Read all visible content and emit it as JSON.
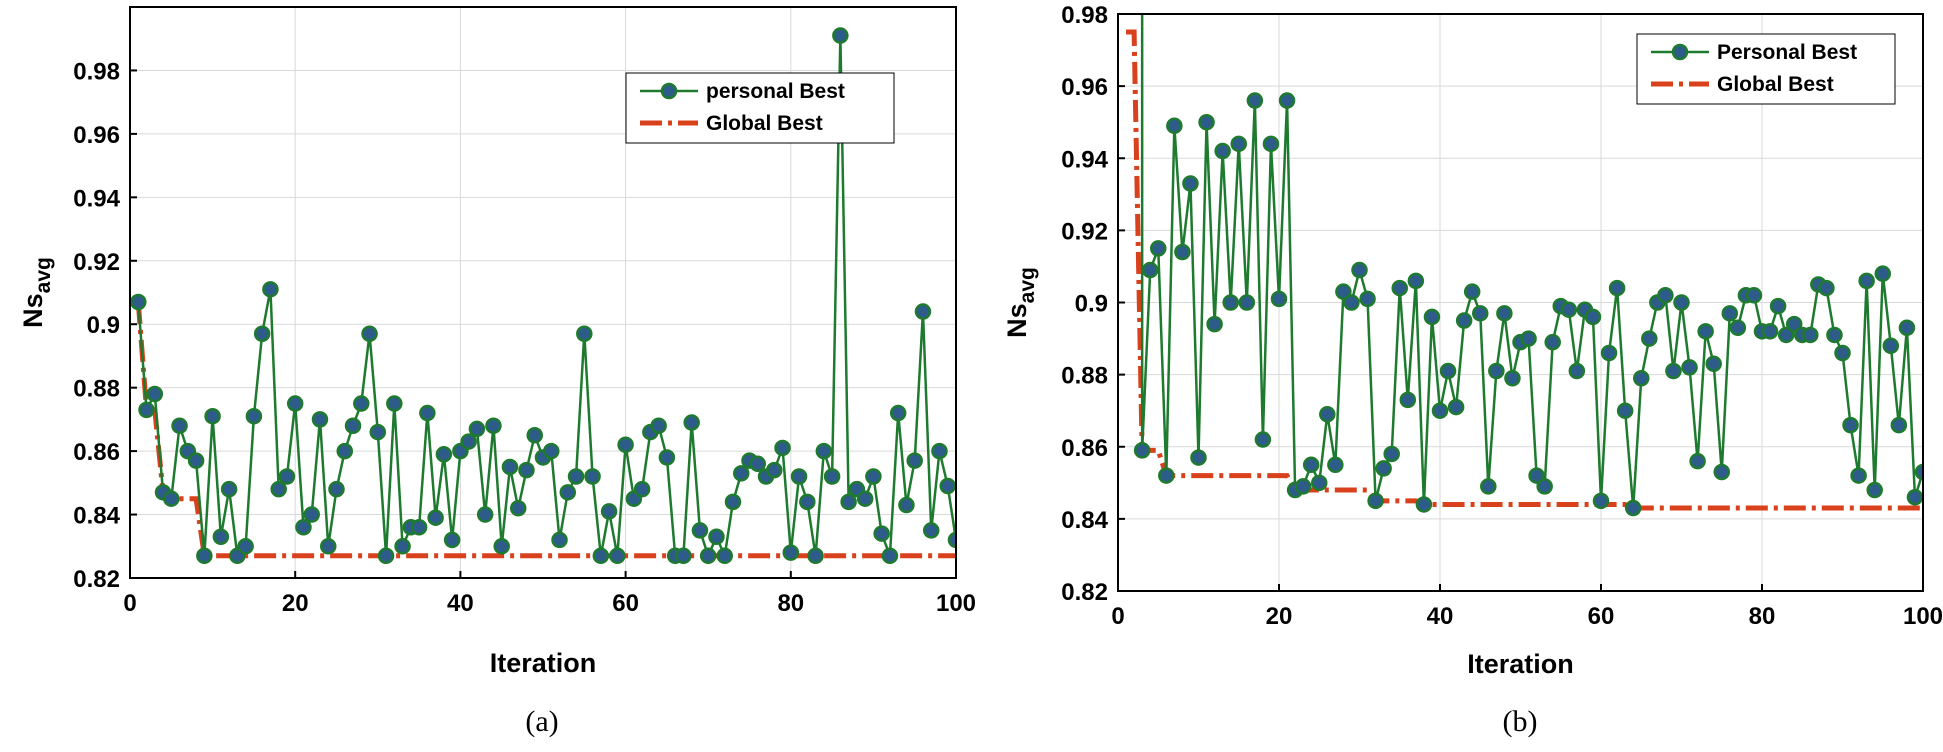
{
  "chart_data": [
    {
      "type": "line",
      "panel": "a",
      "caption": "(a)",
      "xlabel": "Iteration",
      "ylabel_base": "Ns",
      "ylabel_sub": "avg",
      "xlim": [
        0,
        100
      ],
      "ylim": [
        0.82,
        1.0
      ],
      "xticks": [
        0,
        20,
        40,
        60,
        80,
        100
      ],
      "xtick_labels": [
        "0",
        "20",
        "40",
        "60",
        "80",
        "100"
      ],
      "yticks": [
        0.82,
        0.84,
        0.86,
        0.88,
        0.9,
        0.92,
        0.94,
        0.96,
        0.98
      ],
      "ytick_labels": [
        "0.82",
        "0.84",
        "0.86",
        "0.88",
        "0.9",
        "0.92",
        "0.94",
        "0.96",
        "0.98"
      ],
      "grid": true,
      "legend_position": "top-right",
      "colors": {
        "personal": "#1e7a2e",
        "marker_fill": "#2e5c8a",
        "global": "#d9401c"
      },
      "series": [
        {
          "name": "personal Best",
          "style": "line-marker",
          "x": [
            1,
            2,
            3,
            4,
            5,
            6,
            7,
            8,
            9,
            10,
            11,
            12,
            13,
            14,
            15,
            16,
            17,
            18,
            19,
            20,
            21,
            22,
            23,
            24,
            25,
            26,
            27,
            28,
            29,
            30,
            31,
            32,
            33,
            34,
            35,
            36,
            37,
            38,
            39,
            40,
            41,
            42,
            43,
            44,
            45,
            46,
            47,
            48,
            49,
            50,
            51,
            52,
            53,
            54,
            55,
            56,
            57,
            58,
            59,
            60,
            61,
            62,
            63,
            64,
            65,
            66,
            67,
            68,
            69,
            70,
            71,
            72,
            73,
            74,
            75,
            76,
            77,
            78,
            79,
            80,
            81,
            82,
            83,
            84,
            85,
            86,
            87,
            88,
            89,
            90,
            91,
            92,
            93,
            94,
            95,
            96,
            97,
            98,
            99,
            100
          ],
          "values": [
            0.907,
            0.873,
            0.878,
            0.847,
            0.845,
            0.868,
            0.86,
            0.857,
            0.827,
            0.871,
            0.833,
            0.848,
            0.827,
            0.83,
            0.871,
            0.897,
            0.911,
            0.848,
            0.852,
            0.875,
            0.836,
            0.84,
            0.87,
            0.83,
            0.848,
            0.86,
            0.868,
            0.875,
            0.897,
            0.866,
            0.827,
            0.875,
            0.83,
            0.836,
            0.836,
            0.872,
            0.839,
            0.859,
            0.832,
            0.86,
            0.863,
            0.867,
            0.84,
            0.868,
            0.83,
            0.855,
            0.842,
            0.854,
            0.865,
            0.858,
            0.86,
            0.832,
            0.847,
            0.852,
            0.897,
            0.852,
            0.827,
            0.841,
            0.827,
            0.862,
            0.845,
            0.848,
            0.866,
            0.868,
            0.858,
            0.827,
            0.827,
            0.869,
            0.835,
            0.827,
            0.833,
            0.827,
            0.844,
            0.853,
            0.857,
            0.856,
            0.852,
            0.854,
            0.861,
            0.828,
            0.852,
            0.844,
            0.827,
            0.86,
            0.852,
            0.991,
            0.844,
            0.848,
            0.845,
            0.852,
            0.834,
            0.827,
            0.872,
            0.843,
            0.857,
            0.904,
            0.835,
            0.86,
            0.849,
            0.832
          ]
        },
        {
          "name": "Global Best",
          "style": "dash-dot",
          "x": [
            1,
            2,
            3,
            4,
            5,
            6,
            7,
            8,
            9,
            10,
            11,
            12,
            13,
            14,
            15,
            16,
            17,
            18,
            19,
            20,
            21,
            22,
            23,
            24,
            25,
            26,
            27,
            28,
            29,
            30,
            31,
            32,
            33,
            34,
            35,
            36,
            37,
            38,
            39,
            40,
            41,
            42,
            43,
            44,
            45,
            46,
            47,
            48,
            49,
            50,
            51,
            52,
            53,
            54,
            55,
            56,
            57,
            58,
            59,
            60,
            61,
            62,
            63,
            64,
            65,
            66,
            67,
            68,
            69,
            70,
            71,
            72,
            73,
            74,
            75,
            76,
            77,
            78,
            79,
            80,
            81,
            82,
            83,
            84,
            85,
            86,
            87,
            88,
            89,
            90,
            91,
            92,
            93,
            94,
            95,
            96,
            97,
            98,
            99,
            100
          ],
          "values": [
            0.907,
            0.873,
            0.873,
            0.847,
            0.845,
            0.845,
            0.845,
            0.845,
            0.827,
            0.827,
            0.827,
            0.827,
            0.827,
            0.827,
            0.827,
            0.827,
            0.827,
            0.827,
            0.827,
            0.827,
            0.827,
            0.827,
            0.827,
            0.827,
            0.827,
            0.827,
            0.827,
            0.827,
            0.827,
            0.827,
            0.827,
            0.827,
            0.827,
            0.827,
            0.827,
            0.827,
            0.827,
            0.827,
            0.827,
            0.827,
            0.827,
            0.827,
            0.827,
            0.827,
            0.827,
            0.827,
            0.827,
            0.827,
            0.827,
            0.827,
            0.827,
            0.827,
            0.827,
            0.827,
            0.827,
            0.827,
            0.827,
            0.827,
            0.827,
            0.827,
            0.827,
            0.827,
            0.827,
            0.827,
            0.827,
            0.827,
            0.827,
            0.827,
            0.827,
            0.827,
            0.827,
            0.827,
            0.827,
            0.827,
            0.827,
            0.827,
            0.827,
            0.827,
            0.827,
            0.827,
            0.827,
            0.827,
            0.827,
            0.827,
            0.827,
            0.827,
            0.827,
            0.827,
            0.827,
            0.827,
            0.827,
            0.827,
            0.827,
            0.827,
            0.827,
            0.827,
            0.827,
            0.827,
            0.827,
            0.827
          ]
        }
      ]
    },
    {
      "type": "line",
      "panel": "b",
      "caption": "(b)",
      "xlabel": "Iteration",
      "ylabel_base": "Ns",
      "ylabel_sub": "avg",
      "xlim": [
        0,
        100
      ],
      "ylim": [
        0.82,
        0.98
      ],
      "xticks": [
        0,
        20,
        40,
        60,
        80,
        100
      ],
      "xtick_labels": [
        "0",
        "20",
        "40",
        "60",
        "80",
        "100"
      ],
      "yticks": [
        0.82,
        0.84,
        0.86,
        0.88,
        0.9,
        0.92,
        0.94,
        0.96,
        0.98
      ],
      "ytick_labels": [
        "0.82",
        "0.84",
        "0.86",
        "0.88",
        "0.9",
        "0.92",
        "0.94",
        "0.96",
        "0.98"
      ],
      "grid": true,
      "legend_position": "top-right",
      "colors": {
        "personal": "#1e7a2e",
        "marker_fill": "#2e5c8a",
        "global": "#d9401c"
      },
      "series": [
        {
          "name": "Personal Best",
          "style": "line-marker",
          "x": [
            3,
            4,
            5,
            6,
            7,
            8,
            9,
            10,
            11,
            12,
            13,
            14,
            15,
            16,
            17,
            18,
            19,
            20,
            21,
            22,
            23,
            24,
            25,
            26,
            27,
            28,
            29,
            30,
            31,
            32,
            33,
            34,
            35,
            36,
            37,
            38,
            39,
            40,
            41,
            42,
            43,
            44,
            45,
            46,
            47,
            48,
            49,
            50,
            51,
            52,
            53,
            54,
            55,
            56,
            57,
            58,
            59,
            60,
            61,
            62,
            63,
            64,
            65,
            66,
            67,
            68,
            69,
            70,
            71,
            72,
            73,
            74,
            75,
            76,
            77,
            78,
            79,
            80,
            81,
            82,
            83,
            84,
            85,
            86,
            87,
            88,
            89,
            90,
            91,
            92,
            93,
            94,
            95,
            96,
            97,
            98,
            99,
            100
          ],
          "values": [
            0.859,
            0.909,
            0.915,
            0.852,
            0.949,
            0.914,
            0.933,
            0.857,
            0.95,
            0.894,
            0.942,
            0.9,
            0.944,
            0.9,
            0.956,
            0.862,
            0.944,
            0.901,
            0.956,
            0.848,
            0.849,
            0.855,
            0.85,
            0.869,
            0.855,
            0.903,
            0.9,
            0.909,
            0.901,
            0.845,
            0.854,
            0.858,
            0.904,
            0.873,
            0.906,
            0.844,
            0.896,
            0.87,
            0.881,
            0.871,
            0.895,
            0.903,
            0.897,
            0.849,
            0.881,
            0.897,
            0.879,
            0.889,
            0.89,
            0.852,
            0.849,
            0.889,
            0.899,
            0.898,
            0.881,
            0.898,
            0.896,
            0.845,
            0.886,
            0.904,
            0.87,
            0.843,
            0.879,
            0.89,
            0.9,
            0.902,
            0.881,
            0.9,
            0.882,
            0.856,
            0.892,
            0.883,
            0.853,
            0.897,
            0.893,
            0.902,
            0.902,
            0.892,
            0.892,
            0.899,
            0.891,
            0.894,
            0.891,
            0.891,
            0.905,
            0.904,
            0.891,
            0.886,
            0.866,
            0.852,
            0.906,
            0.848,
            0.908,
            0.888,
            0.866,
            0.893,
            0.846,
            0.853
          ]
        },
        {
          "name": "Global Best",
          "style": "dash-dot",
          "x": [
            1,
            2,
            3,
            4,
            5,
            6,
            7,
            8,
            9,
            10,
            11,
            12,
            13,
            14,
            15,
            16,
            17,
            18,
            19,
            20,
            21,
            22,
            23,
            24,
            25,
            26,
            27,
            28,
            29,
            30,
            31,
            32,
            33,
            34,
            35,
            36,
            37,
            38,
            39,
            40,
            41,
            42,
            43,
            44,
            45,
            46,
            47,
            48,
            49,
            50,
            51,
            52,
            53,
            54,
            55,
            56,
            57,
            58,
            59,
            60,
            61,
            62,
            63,
            64,
            65,
            66,
            67,
            68,
            69,
            70,
            71,
            72,
            73,
            74,
            75,
            76,
            77,
            78,
            79,
            80,
            81,
            82,
            83,
            84,
            85,
            86,
            87,
            88,
            89,
            90,
            91,
            92,
            93,
            94,
            95,
            96,
            97,
            98,
            99,
            100
          ],
          "values": [
            0.975,
            0.975,
            0.859,
            0.859,
            0.859,
            0.852,
            0.852,
            0.852,
            0.852,
            0.852,
            0.852,
            0.852,
            0.852,
            0.852,
            0.852,
            0.852,
            0.852,
            0.852,
            0.852,
            0.852,
            0.852,
            0.848,
            0.848,
            0.848,
            0.848,
            0.848,
            0.848,
            0.848,
            0.848,
            0.848,
            0.848,
            0.845,
            0.845,
            0.845,
            0.845,
            0.845,
            0.845,
            0.844,
            0.844,
            0.844,
            0.844,
            0.844,
            0.844,
            0.844,
            0.844,
            0.844,
            0.844,
            0.844,
            0.844,
            0.844,
            0.844,
            0.844,
            0.844,
            0.844,
            0.844,
            0.844,
            0.844,
            0.844,
            0.844,
            0.844,
            0.844,
            0.844,
            0.844,
            0.843,
            0.843,
            0.843,
            0.843,
            0.843,
            0.843,
            0.843,
            0.843,
            0.843,
            0.843,
            0.843,
            0.843,
            0.843,
            0.843,
            0.843,
            0.843,
            0.843,
            0.843,
            0.843,
            0.843,
            0.843,
            0.843,
            0.843,
            0.843,
            0.843,
            0.843,
            0.843,
            0.843,
            0.843,
            0.843,
            0.843,
            0.843,
            0.843,
            0.843,
            0.843,
            0.843,
            0.843
          ]
        }
      ]
    }
  ]
}
